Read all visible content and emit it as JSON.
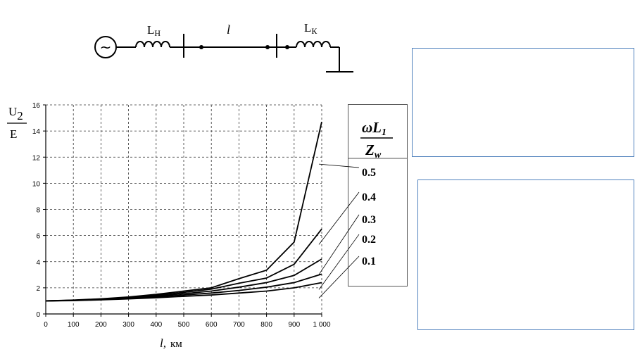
{
  "scheme": {
    "source_symbol": "~",
    "label_start_inductance": "L",
    "label_start_inductance_sub": "Н",
    "label_line": "l",
    "label_end_inductance": "L",
    "label_end_inductance_sub": "К"
  },
  "legend_header": {
    "numerator": "ωL",
    "numerator_sub": "1",
    "denominator": "Z",
    "denominator_sub": "w"
  },
  "chart_data": {
    "type": "line",
    "xlabel": "l,",
    "xunit": "км",
    "ylabel_num": "U",
    "ylabel_num_sub": "2",
    "ylabel_den": "E",
    "xlim": [
      0,
      1000
    ],
    "ylim": [
      0,
      16
    ],
    "xticks": [
      "0",
      "100",
      "200",
      "300",
      "400",
      "500",
      "600",
      "700",
      "800",
      "900",
      "1 000"
    ],
    "yticks": [
      "0",
      "2",
      "4",
      "6",
      "8",
      "10",
      "12",
      "14",
      "16"
    ],
    "grid": true,
    "x": [
      0,
      100,
      200,
      300,
      400,
      500,
      600,
      700,
      800,
      900,
      1000
    ],
    "series": [
      {
        "name": "0.5",
        "values": [
          1.0,
          1.06,
          1.16,
          1.3,
          1.5,
          1.75,
          2.0,
          2.7,
          3.35,
          5.5,
          14.7
        ]
      },
      {
        "name": "0.4",
        "values": [
          1.0,
          1.05,
          1.14,
          1.27,
          1.44,
          1.65,
          1.9,
          2.35,
          2.75,
          3.8,
          6.5
        ]
      },
      {
        "name": "0.3",
        "values": [
          1.0,
          1.04,
          1.12,
          1.23,
          1.37,
          1.55,
          1.75,
          2.05,
          2.4,
          2.95,
          4.2
        ]
      },
      {
        "name": "0.2",
        "values": [
          1.0,
          1.03,
          1.1,
          1.19,
          1.31,
          1.45,
          1.6,
          1.8,
          2.05,
          2.4,
          3.05
        ]
      },
      {
        "name": "0.1",
        "values": [
          1.0,
          1.02,
          1.08,
          1.15,
          1.24,
          1.35,
          1.45,
          1.6,
          1.75,
          2.0,
          2.4
        ]
      }
    ]
  }
}
